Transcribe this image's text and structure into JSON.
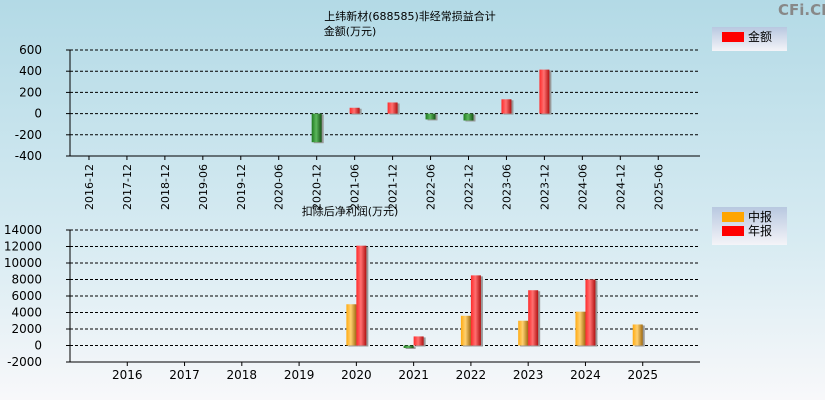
{
  "watermark": "CFi.CN",
  "chart_data": [
    {
      "type": "bar",
      "title": "上纬新材(688585)非经常损益合计",
      "ylabel": "金额(万元)",
      "ylim": [
        -400,
        600
      ],
      "yticks": [
        600,
        400,
        200,
        0,
        -200,
        -400
      ],
      "grid": true,
      "legend_placement": "top-right",
      "categories": [
        "2016-12",
        "2017-12",
        "2018-12",
        "2019-06",
        "2019-12",
        "2020-06",
        "2020-12",
        "2021-06",
        "2021-12",
        "2022-06",
        "2022-12",
        "2023-06",
        "2023-12",
        "2024-06",
        "2024-12",
        "2025-06"
      ],
      "series": [
        {
          "name": "金额",
          "values": [
            null,
            null,
            null,
            null,
            null,
            null,
            -270,
            55,
            105,
            -55,
            -65,
            135,
            415,
            null,
            null,
            null
          ]
        }
      ],
      "colors": {
        "positive": "#ff2020",
        "negative": "#2e8b2e"
      }
    },
    {
      "type": "bar",
      "title": "扣除后净利润(万元)",
      "ylim": [
        -2000,
        14000
      ],
      "yticks": [
        14000,
        12000,
        10000,
        8000,
        6000,
        4000,
        2000,
        0,
        -2000
      ],
      "grid": true,
      "legend_placement": "top-right",
      "categories": [
        "2016",
        "2017",
        "2018",
        "2019",
        "2020",
        "2021",
        "2022",
        "2023",
        "2024",
        "2025"
      ],
      "series": [
        {
          "name": "中报",
          "color": "#ffa500",
          "values": [
            null,
            null,
            null,
            null,
            5000,
            -300,
            3600,
            3000,
            4100,
            2550
          ]
        },
        {
          "name": "年报",
          "color": "#ff0000",
          "values": [
            null,
            null,
            null,
            null,
            12100,
            1100,
            8500,
            6700,
            8000,
            null
          ]
        }
      ],
      "negative_color": "#2e8b2e"
    }
  ]
}
